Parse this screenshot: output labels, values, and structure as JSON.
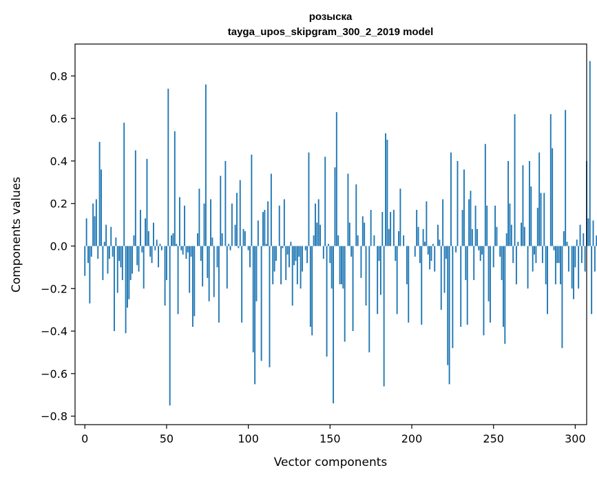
{
  "chart_data": {
    "type": "bar",
    "title": "розыска",
    "subtitle": "tayga_upos_skipgram_300_2_2019 model",
    "xlabel": "Vector components",
    "ylabel": "Components values",
    "xlim": [
      -6,
      307
    ],
    "ylim": [
      -0.84,
      0.95
    ],
    "xticks": [
      0,
      50,
      100,
      150,
      200,
      250,
      300
    ],
    "xtick_labels": [
      "0",
      "50",
      "100",
      "150",
      "200",
      "250",
      "300"
    ],
    "yticks": [
      -0.8,
      -0.6,
      -0.4,
      -0.2,
      0.0,
      0.2,
      0.4,
      0.6,
      0.8
    ],
    "ytick_labels": [
      "−0.8",
      "−0.6",
      "−0.4",
      "−0.2",
      "0.0",
      "0.2",
      "0.4",
      "0.6",
      "0.8"
    ],
    "grid": false,
    "bar_color": "#1f77b4",
    "x_start": 0,
    "values": [
      -0.14,
      0.13,
      -0.08,
      -0.27,
      -0.05,
      0.2,
      0.14,
      0.22,
      -0.06,
      0.49,
      0.36,
      -0.16,
      0.02,
      0.1,
      -0.13,
      -0.06,
      0.09,
      -0.05,
      -0.4,
      0.04,
      -0.22,
      -0.07,
      -0.1,
      -0.16,
      0.58,
      -0.41,
      -0.29,
      -0.25,
      -0.16,
      -0.13,
      0.05,
      0.45,
      -0.09,
      -0.12,
      0.17,
      -0.03,
      -0.2,
      0.13,
      0.41,
      0.07,
      -0.05,
      -0.08,
      0.11,
      -0.02,
      0.03,
      -0.1,
      0.01,
      -0.02,
      0.0,
      -0.28,
      -0.16,
      0.74,
      -0.75,
      0.05,
      0.06,
      0.54,
      0.01,
      -0.32,
      0.23,
      -0.02,
      -0.04,
      0.19,
      -0.06,
      -0.03,
      -0.22,
      -0.05,
      -0.38,
      -0.33,
      0.0,
      0.06,
      0.27,
      -0.07,
      -0.19,
      0.2,
      0.76,
      -0.15,
      -0.26,
      0.22,
      0.04,
      -0.24,
      0.0,
      -0.1,
      -0.36,
      0.33,
      0.06,
      0.0,
      0.4,
      -0.2,
      0.01,
      -0.02,
      0.2,
      0.0,
      0.1,
      0.25,
      -0.01,
      0.31,
      -0.36,
      0.08,
      0.07,
      0.0,
      -0.02,
      -0.1,
      0.43,
      -0.5,
      -0.65,
      -0.26,
      0.12,
      0.0,
      -0.54,
      0.16,
      0.17,
      0.01,
      0.21,
      -0.57,
      0.34,
      -0.18,
      -0.12,
      -0.07,
      0.0,
      0.19,
      -0.18,
      -0.01,
      0.22,
      -0.16,
      -0.04,
      -0.1,
      0.02,
      -0.28,
      -0.09,
      -0.07,
      -0.18,
      -0.05,
      -0.2,
      -0.12,
      0.0,
      -0.02,
      -0.08,
      0.44,
      -0.38,
      -0.42,
      0.05,
      0.2,
      0.11,
      0.22,
      0.1,
      0.0,
      -0.06,
      0.42,
      -0.52,
      0.01,
      -0.08,
      -0.2,
      -0.74,
      0.37,
      0.63,
      0.05,
      -0.18,
      -0.18,
      -0.2,
      -0.45,
      0.0,
      0.34,
      0.11,
      -0.05,
      -0.4,
      0.0,
      0.29,
      0.05,
      0.0,
      -0.15,
      0.14,
      0.11,
      -0.28,
      0.0,
      -0.5,
      0.17,
      0.0,
      0.05,
      0.0,
      -0.32,
      -0.07,
      -0.23,
      0.16,
      -0.66,
      0.53,
      0.5,
      0.08,
      0.16,
      0.0,
      0.17,
      -0.07,
      -0.32,
      0.07,
      0.27,
      0.0,
      0.05,
      0.0,
      -0.18,
      -0.36,
      0.0,
      0.0,
      0.0,
      -0.05,
      0.17,
      0.09,
      -0.08,
      -0.37,
      0.08,
      0.02,
      0.21,
      -0.04,
      -0.11,
      -0.07,
      0.01,
      -0.12,
      0.0,
      0.1,
      0.03,
      -0.3,
      0.22,
      -0.22,
      -0.06,
      -0.56,
      -0.65,
      0.44,
      -0.48,
      0.0,
      -0.03,
      0.4,
      0.0,
      -0.38,
      0.17,
      0.36,
      -0.16,
      -0.37,
      0.22,
      0.26,
      0.08,
      -0.16,
      0.19,
      0.08,
      -0.02,
      -0.07,
      -0.04,
      -0.42,
      0.48,
      0.19,
      -0.26,
      -0.36,
      0.0,
      -0.1,
      0.19,
      0.09,
      0.0,
      -0.05,
      -0.16,
      -0.38,
      -0.46,
      0.06,
      0.4,
      0.2,
      0.1,
      -0.08,
      0.62,
      -0.18,
      0.02,
      0.0,
      0.11,
      0.38,
      0.09,
      0.0,
      -0.2,
      0.4,
      0.28,
      -0.12,
      -0.04,
      -0.08,
      0.18,
      0.44,
      0.25,
      -0.08,
      0.25,
      -0.18,
      -0.32,
      0.0,
      0.62,
      0.46,
      -0.02,
      -0.18,
      -0.08,
      -0.08,
      -0.18,
      -0.48,
      0.07,
      0.64,
      0.02,
      -0.12,
      0.0,
      -0.2,
      -0.25,
      -0.1,
      0.03,
      -0.2,
      0.1,
      -0.08,
      0.06,
      -0.12,
      0.4,
      0.13,
      0.87,
      -0.32,
      0.12,
      -0.12,
      0.05,
      -0.16,
      0.0,
      0.0,
      0.0,
      0.0,
      0.0,
      0.0,
      0.0
    ]
  }
}
